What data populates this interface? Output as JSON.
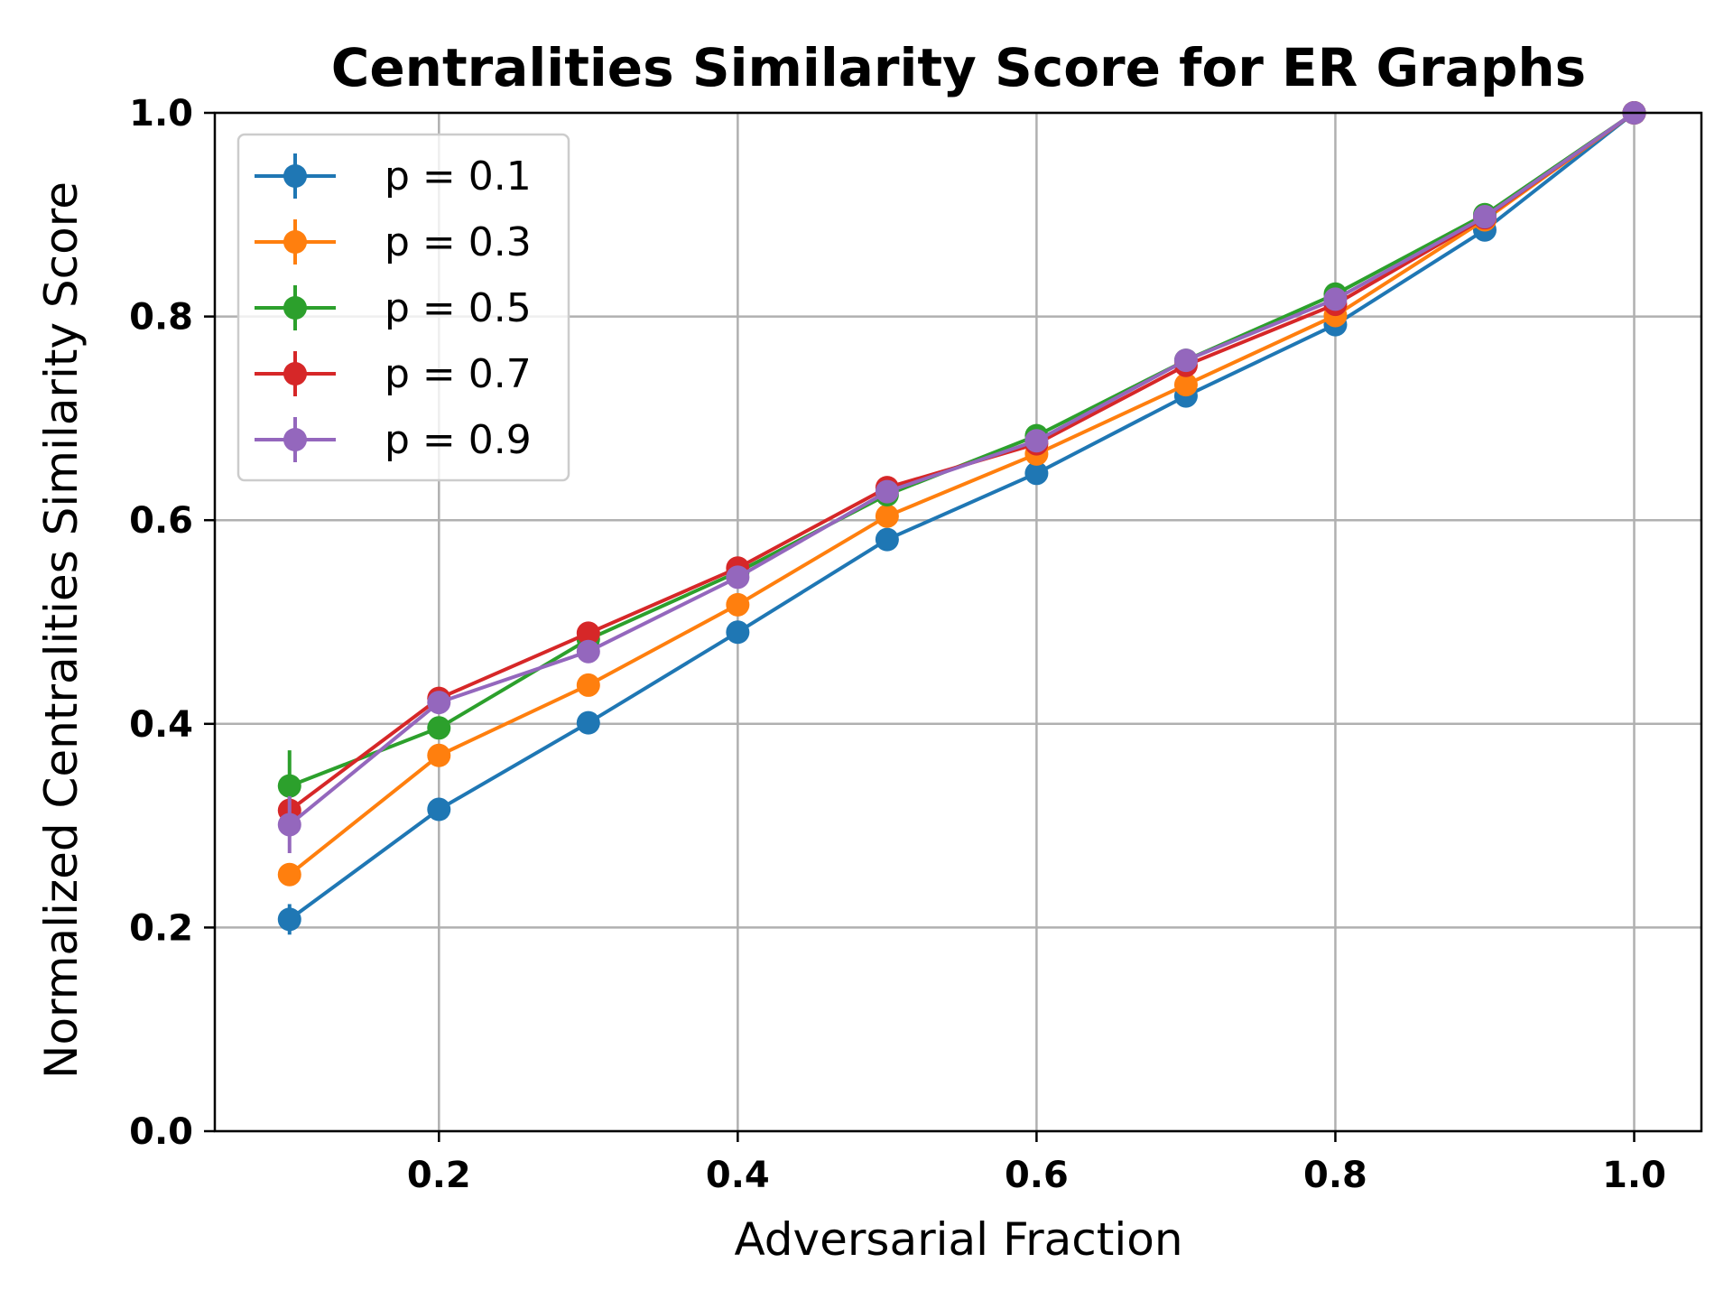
{
  "chart_data": {
    "type": "line",
    "title": "Centralities Similarity Score for ER Graphs",
    "xlabel": "Adversarial Fraction",
    "ylabel": "Normalized Centralities Similarity Score",
    "xlim": [
      0.05,
      1.045
    ],
    "ylim": [
      0.0,
      1.0
    ],
    "xticks": [
      0.2,
      0.4,
      0.6,
      0.8,
      1.0
    ],
    "xtick_labels": [
      "0.2",
      "0.4",
      "0.6",
      "0.8",
      "1.0"
    ],
    "yticks": [
      0.0,
      0.2,
      0.4,
      0.6,
      0.8,
      1.0
    ],
    "ytick_labels": [
      "0.0",
      "0.2",
      "0.4",
      "0.6",
      "0.8",
      "1.0"
    ],
    "grid": true,
    "legend_position": "top-left",
    "x": [
      0.1,
      0.2,
      0.3,
      0.4,
      0.5,
      0.6,
      0.7,
      0.8,
      0.9,
      1.0
    ],
    "series": [
      {
        "name": "p = 0.1",
        "color": "#1f77b4",
        "values": [
          0.208,
          0.316,
          0.401,
          0.49,
          0.581,
          0.646,
          0.722,
          0.792,
          0.885,
          1.0
        ],
        "errors": [
          0.015,
          0.006,
          0.005,
          0.005,
          0.004,
          0.004,
          0.003,
          0.003,
          0.002,
          0.0
        ]
      },
      {
        "name": "p = 0.3",
        "color": "#ff7f0e",
        "values": [
          0.252,
          0.369,
          0.438,
          0.517,
          0.604,
          0.665,
          0.733,
          0.801,
          0.895,
          1.0
        ],
        "errors": [
          0.01,
          0.006,
          0.005,
          0.005,
          0.004,
          0.004,
          0.003,
          0.003,
          0.002,
          0.0
        ]
      },
      {
        "name": "p = 0.5",
        "color": "#2ca02c",
        "values": [
          0.339,
          0.396,
          0.483,
          0.549,
          0.625,
          0.683,
          0.757,
          0.822,
          0.9,
          1.0
        ],
        "errors": [
          0.035,
          0.007,
          0.006,
          0.005,
          0.004,
          0.004,
          0.003,
          0.003,
          0.002,
          0.0
        ]
      },
      {
        "name": "p = 0.7",
        "color": "#d62728",
        "values": [
          0.315,
          0.425,
          0.489,
          0.553,
          0.632,
          0.675,
          0.752,
          0.812,
          0.897,
          1.0
        ],
        "errors": [
          0.012,
          0.006,
          0.005,
          0.005,
          0.004,
          0.004,
          0.003,
          0.003,
          0.002,
          0.0
        ]
      },
      {
        "name": "p = 0.9",
        "color": "#9467bd",
        "values": [
          0.301,
          0.421,
          0.471,
          0.544,
          0.628,
          0.678,
          0.757,
          0.817,
          0.898,
          1.0
        ],
        "errors": [
          0.028,
          0.007,
          0.006,
          0.005,
          0.004,
          0.004,
          0.003,
          0.003,
          0.002,
          0.0
        ]
      }
    ]
  }
}
